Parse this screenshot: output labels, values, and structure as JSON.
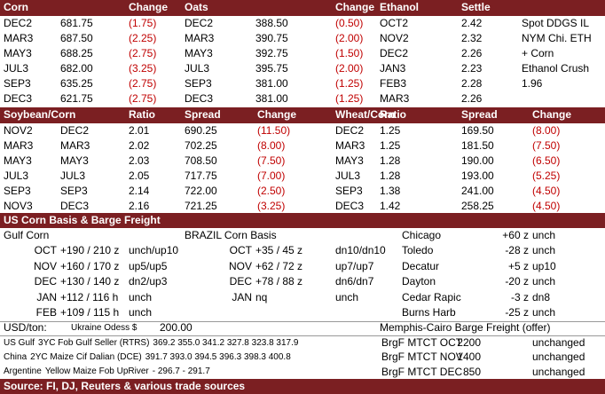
{
  "futures": {
    "headers": [
      "Corn",
      "Change",
      "Oats",
      "Change",
      "Ethanol",
      "Settle"
    ],
    "rows": [
      [
        "DEC2",
        "681.75",
        "(1.75)",
        "DEC2",
        "388.50",
        "(0.50)",
        "OCT2",
        "2.42",
        "Spot DDGS IL"
      ],
      [
        "MAR3",
        "687.50",
        "(2.25)",
        "MAR3",
        "390.75",
        "(2.00)",
        "NOV2",
        "2.32",
        "NYM Chi. ETH"
      ],
      [
        "MAY3",
        "688.25",
        "(2.75)",
        "MAY3",
        "392.75",
        "(1.50)",
        "DEC2",
        "2.26",
        "+ Corn"
      ],
      [
        "JUL3",
        "682.00",
        "(3.25)",
        "JUL3",
        "395.75",
        "(2.00)",
        "JAN3",
        "2.23",
        "Ethanol Crush"
      ],
      [
        "SEP3",
        "635.25",
        "(2.75)",
        "SEP3",
        "381.00",
        "(1.25)",
        "FEB3",
        "2.28",
        "1.96"
      ],
      [
        "DEC3",
        "621.75",
        "(2.75)",
        "DEC3",
        "381.00",
        "(1.25)",
        "MAR3",
        "2.26"
      ]
    ]
  },
  "spreads": {
    "headers": [
      "Soybean/Corn",
      "Ratio",
      "Spread",
      "Change",
      "Wheat/Corn",
      "Ratio",
      "Spread",
      "Change"
    ],
    "rows": [
      [
        "NOV2",
        "DEC2",
        "2.01",
        "690.25",
        "(11.50)",
        "DEC2",
        "1.25",
        "169.50",
        "(8.00)"
      ],
      [
        "MAR3",
        "MAR3",
        "2.02",
        "702.25",
        "(8.00)",
        "MAR3",
        "1.25",
        "181.50",
        "(7.50)"
      ],
      [
        "MAY3",
        "MAY3",
        "2.03",
        "708.50",
        "(7.50)",
        "MAY3",
        "1.28",
        "190.00",
        "(6.50)"
      ],
      [
        "JUL3",
        "JUL3",
        "2.05",
        "717.75",
        "(7.00)",
        "JUL3",
        "1.28",
        "193.00",
        "(5.25)"
      ],
      [
        "SEP3",
        "SEP3",
        "2.14",
        "722.00",
        "(2.50)",
        "SEP3",
        "1.38",
        "241.00",
        "(4.50)"
      ],
      [
        "NOV3",
        "DEC3",
        "2.16",
        "721.25",
        "(3.25)",
        "DEC3",
        "1.42",
        "258.25",
        "(4.50)"
      ]
    ]
  },
  "basis": {
    "title": "US Corn Basis & Barge Freight",
    "gulf_title": "Gulf Corn",
    "brazil_title": "BRAZIL Corn Basis",
    "gulf": [
      [
        "OCT",
        "+190 / 210 z",
        "unch/up10"
      ],
      [
        "NOV",
        "+160 / 170 z",
        "up5/up5"
      ],
      [
        "DEC",
        "+130 / 140 z",
        "dn2/up3"
      ],
      [
        "JAN",
        "+112 / 116 h",
        "unch"
      ],
      [
        "FEB",
        "+109 / 115 h",
        "unch"
      ]
    ],
    "brazil": [
      [
        "OCT",
        "+35 / 45 z",
        "dn10/dn10"
      ],
      [
        "NOV",
        "+62 / 72 z",
        "up7/up7"
      ],
      [
        "DEC",
        "+78 / 88 z",
        "dn6/dn7"
      ],
      [
        "JAN",
        "nq",
        "unch"
      ]
    ],
    "interior": [
      [
        "Chicago",
        "+60 z",
        "unch"
      ],
      [
        "Toledo",
        "-28 z",
        "unch"
      ],
      [
        "Decatur",
        "+5 z",
        "up10"
      ],
      [
        "Dayton",
        "-20 z",
        "unch"
      ],
      [
        "Cedar Rapic",
        "-3 z",
        "dn8"
      ],
      [
        "Burns Harb",
        "-25 z",
        "unch"
      ]
    ]
  },
  "usd": {
    "label": "USD/ton:",
    "ukraine_label": "Ukraine Odess $",
    "ukraine_value": "200.00",
    "barge_title": "Memphis-Cairo Barge Freight (offer)",
    "prices": [
      {
        "origin": "US Gulf",
        "desc": "3YC Fob Gulf Seller (RTRS)",
        "values": "369.2 355.0 341.2 327.8 323.8 317.9"
      },
      {
        "origin": "China",
        "desc": "2YC Maize Cif Dalian (DCE)",
        "values": "391.7 393.0 394.5 396.3 398.3 400.8"
      },
      {
        "origin": "Argentine",
        "desc": "Yellow Maize Fob UpRiver",
        "values": "- 296.7 - 291.7"
      }
    ],
    "barge": [
      [
        "BrgF MTCT OCT",
        "2200",
        "unchanged"
      ],
      [
        "BrgF MTCT NOV",
        "1400",
        "unchanged"
      ],
      [
        "BrgF MTCT DEC",
        "850",
        "unchanged"
      ]
    ]
  },
  "source": "Source: FI, DJ, Reuters & various trade sources"
}
